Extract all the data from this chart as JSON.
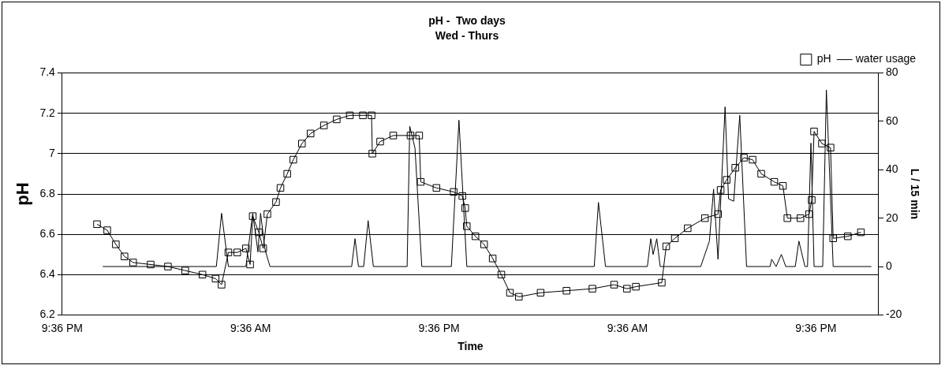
{
  "chart_data": {
    "type": "line",
    "title": "pH -  Two days",
    "subtitle": "Wed - Thurs",
    "xlabel": "Time",
    "ylabel": "pH",
    "y2label": "L / 15 min",
    "xlim": [
      "--01-04T21:36",
      "--01-07T01:36"
    ],
    "xticks": [
      {
        "value": "--01-04T21:36",
        "label": "9:36 PM"
      },
      {
        "value": "--01-05T09:36",
        "label": "9:36 AM"
      },
      {
        "value": "--01-05T21:36",
        "label": "9:36 PM"
      },
      {
        "value": "--01-06T09:36",
        "label": "9:36 AM"
      },
      {
        "value": "--01-06T21:36",
        "label": "9:36 PM"
      }
    ],
    "ylim": [
      6.2,
      7.4
    ],
    "yticks": [
      6.2,
      6.4,
      6.6,
      6.8,
      7,
      7.2,
      7.4
    ],
    "y2lim": [
      -20,
      80
    ],
    "y2ticks": [
      -20,
      0,
      20,
      40,
      60,
      80
    ],
    "grid": "y",
    "legend": "top right",
    "series": [
      {
        "name": "pH",
        "color": "#000000",
        "marker": "square",
        "line_style": "solid",
        "x": [
          "--01-04T23:49",
          "--01-05T00:28",
          "--01-05T01:01",
          "--01-05T01:34",
          "--01-05T02:07",
          "--01-05T03:14",
          "--01-05T04:20",
          "--01-05T05:26",
          "--01-05T06:32",
          "--01-05T07:22",
          "--01-05T07:45",
          "--01-05T08:11",
          "--01-05T08:45",
          "--01-05T09:18",
          "--01-05T09:34",
          "--01-05T09:44",
          "--01-05T10:07",
          "--01-05T10:24",
          "--01-05T10:40",
          "--01-05T11:13",
          "--01-05T11:30",
          "--01-05T11:56",
          "--01-05T12:19",
          "--01-05T12:52",
          "--01-05T13:25",
          "--01-05T14:16",
          "--01-05T15:05",
          "--01-05T15:55",
          "--01-05T16:45",
          "--01-05T17:18",
          "--01-05T17:21",
          "--01-05T17:51",
          "--01-05T18:41",
          "--01-05T19:47",
          "--01-05T20:20",
          "--01-05T20:26",
          "--01-05T21:26",
          "--01-05T22:32",
          "--01-05T23:05",
          "--01-05T23:16",
          "--01-05T23:22",
          "--01-05T23:55",
          "--01-06T00:28",
          "--01-06T01:01",
          "--01-06T01:34",
          "--01-06T02:07",
          "--01-06T02:41",
          "--01-06T04:04",
          "--01-06T05:43",
          "--01-06T07:22",
          "--01-06T08:45",
          "--01-06T09:34",
          "--01-06T10:08",
          "--01-06T11:47",
          "--01-06T12:04",
          "--01-06T12:37",
          "--01-06T13:26",
          "--01-06T14:32",
          "--01-06T15:22",
          "--01-06T15:32",
          "--01-06T15:55",
          "--01-06T16:28",
          "--01-06T17:01",
          "--01-06T17:34",
          "--01-06T18:07",
          "--01-06T18:57",
          "--01-06T19:30",
          "--01-06T19:47",
          "--01-06T20:37",
          "--01-06T21:10",
          "--01-06T21:20",
          "--01-06T21:29",
          "--01-06T21:59",
          "--01-06T22:32",
          "--01-06T22:42",
          "--01-06T23:38",
          "--01-07T00:28"
        ],
        "values": [
          6.65,
          6.62,
          6.55,
          6.49,
          6.46,
          6.45,
          6.44,
          6.42,
          6.4,
          6.38,
          6.35,
          6.51,
          6.51,
          6.53,
          6.45,
          6.69,
          6.61,
          6.53,
          6.7,
          6.76,
          6.83,
          6.9,
          6.97,
          7.05,
          7.1,
          7.14,
          7.17,
          7.19,
          7.19,
          7.19,
          7,
          7.06,
          7.09,
          7.09,
          7.09,
          6.86,
          6.83,
          6.81,
          6.79,
          6.73,
          6.64,
          6.59,
          6.55,
          6.48,
          6.4,
          6.31,
          6.29,
          6.31,
          6.32,
          6.33,
          6.35,
          6.33,
          6.34,
          6.36,
          6.54,
          6.58,
          6.63,
          6.68,
          6.7,
          6.82,
          6.87,
          6.93,
          6.98,
          6.97,
          6.9,
          6.86,
          6.84,
          6.68,
          6.68,
          6.7,
          6.77,
          7.11,
          7.05,
          7.03,
          6.58,
          6.59,
          6.61
        ]
      },
      {
        "name": "water usage",
        "color": "#000000",
        "marker": "none",
        "line_style": "solid",
        "axis": "y2",
        "x": [
          "--01-05T00:11",
          "--01-05T07:25",
          "--01-05T07:45",
          "--01-05T08:11",
          "--01-05T09:18",
          "--01-05T09:44",
          "--01-05T10:04",
          "--01-05T10:14",
          "--01-05T10:31",
          "--01-05T10:50",
          "--01-05T16:02",
          "--01-05T16:15",
          "--01-05T16:28",
          "--01-05T16:48",
          "--01-05T17:05",
          "--01-05T17:25",
          "--01-05T19:34",
          "--01-05T19:44",
          "--01-05T20:04",
          "--01-05T20:30",
          "--01-05T22:23",
          "--01-05T22:52",
          "--01-05T23:22",
          "--01-06T07:29",
          "--01-06T07:45",
          "--01-06T08:12",
          "--01-06T10:52",
          "--01-06T11:05",
          "--01-06T11:14",
          "--01-06T11:28",
          "--01-06T11:41",
          "--01-06T14:16",
          "--01-06T14:49",
          "--01-06T15:05",
          "--01-06T15:22",
          "--01-06T15:49",
          "--01-06T16:02",
          "--01-06T16:22",
          "--01-06T16:45",
          "--01-06T17:11",
          "--01-06T18:41",
          "--01-06T18:47",
          "--01-06T19:04",
          "--01-06T19:24",
          "--01-06T19:41",
          "--01-06T20:17",
          "--01-06T20:31",
          "--01-06T20:54",
          "--01-06T21:04",
          "--01-06T21:17",
          "--01-06T21:29",
          "--01-06T22:02",
          "--01-06T22:16",
          "--01-06T22:42",
          "--01-07T01:08"
        ],
        "values": [
          0,
          0,
          22,
          0,
          0,
          22,
          6,
          22,
          7,
          0,
          0,
          11.5,
          0,
          0,
          19,
          0,
          0,
          58,
          49,
          0,
          0,
          60.5,
          0,
          0,
          26.5,
          0,
          0,
          11.5,
          5,
          11.5,
          0,
          0,
          10.5,
          32,
          3,
          66,
          28,
          27,
          62.5,
          0,
          0,
          3,
          0,
          5,
          0,
          0,
          10.5,
          0,
          0,
          51,
          0,
          0,
          73,
          0,
          0
        ]
      }
    ]
  }
}
